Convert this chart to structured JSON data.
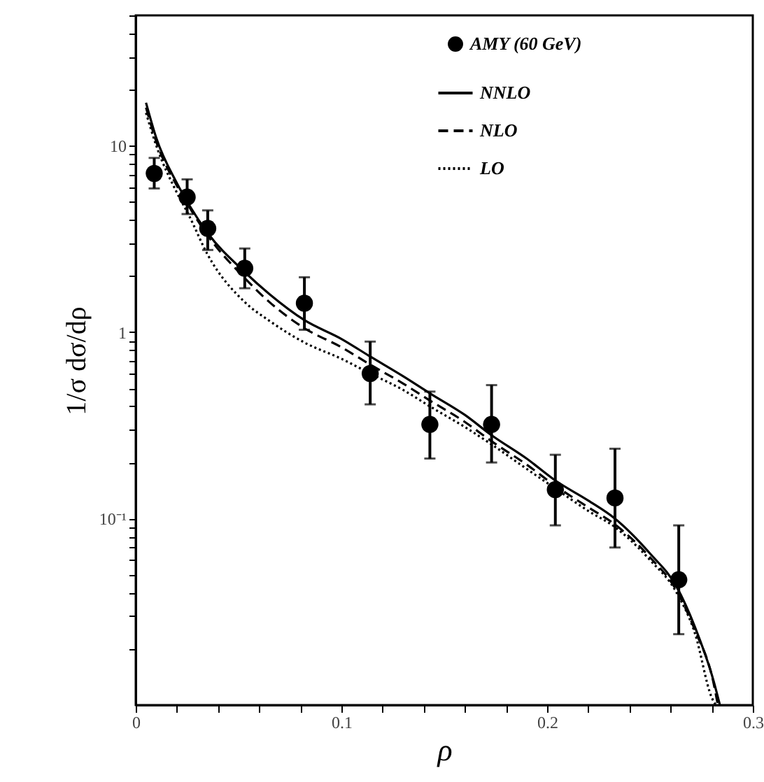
{
  "chart_data": {
    "type": "scatter",
    "xlabel": "ρ",
    "ylabel": "1/σ dσ/dρ",
    "log": "y",
    "grid": false,
    "legend": "top right",
    "xlim": [
      0,
      0.3
    ],
    "ylim": [
      0.01,
      50
    ],
    "xticks": [
      0,
      {
        "value": 0.02,
        "label": null
      },
      {
        "value": 0.04,
        "label": null
      },
      {
        "value": 0.06,
        "label": null
      },
      {
        "value": 0.08,
        "label": null
      },
      {
        "value": 0.1,
        "label": "0.1"
      },
      {
        "value": 0.12,
        "label": null
      },
      {
        "value": 0.14,
        "label": null
      },
      {
        "value": 0.16,
        "label": null
      },
      {
        "value": 0.18,
        "label": null
      },
      {
        "value": 0.2,
        "label": "0.2"
      },
      {
        "value": 0.22,
        "label": null
      },
      {
        "value": 0.24,
        "label": null
      },
      {
        "value": 0.26,
        "label": null
      },
      {
        "value": 0.28,
        "label": null
      },
      {
        "value": 0.3,
        "label": "0.3"
      }
    ],
    "yticks": [
      {
        "value": 0.02,
        "label": null
      },
      {
        "value": 0.03,
        "label": null
      },
      {
        "value": 0.04,
        "label": null
      },
      {
        "value": 0.05,
        "label": null
      },
      {
        "value": 0.06,
        "label": null
      },
      {
        "value": 0.07,
        "label": null
      },
      {
        "value": 0.08,
        "label": null
      },
      {
        "value": 0.09,
        "label": null
      },
      {
        "value": 0.1,
        "label": "10⁻¹"
      },
      {
        "value": 0.2,
        "label": null
      },
      {
        "value": 0.3,
        "label": null
      },
      {
        "value": 0.4,
        "label": null
      },
      {
        "value": 0.5,
        "label": null
      },
      {
        "value": 0.6,
        "label": null
      },
      {
        "value": 0.7,
        "label": null
      },
      {
        "value": 0.8,
        "label": null
      },
      {
        "value": 0.9,
        "label": null
      },
      1,
      {
        "value": 2,
        "label": null
      },
      {
        "value": 3,
        "label": null
      },
      {
        "value": 4,
        "label": null
      },
      {
        "value": 5,
        "label": null
      },
      {
        "value": 6,
        "label": null
      },
      {
        "value": 7,
        "label": null
      },
      {
        "value": 8,
        "label": null
      },
      {
        "value": 9,
        "label": null
      },
      10,
      {
        "value": 20,
        "label": null
      },
      {
        "value": 30,
        "label": null
      },
      {
        "value": 40,
        "label": null
      },
      {
        "value": 50,
        "label": null
      }
    ],
    "series": [
      {
        "name": "AMY (60 GeV)",
        "marker": "circle",
        "color": "#000000",
        "x": [
          0.009,
          0.025,
          0.035,
          0.053,
          0.082,
          0.114,
          0.143,
          0.173,
          0.204,
          0.233,
          0.264
        ],
        "values": [
          7.1,
          5.3,
          3.6,
          2.2,
          1.43,
          0.6,
          0.32,
          0.32,
          0.143,
          0.129,
          0.047
        ],
        "errors": [
          [
            5.9,
            8.6
          ],
          [
            4.3,
            6.6
          ],
          [
            2.76,
            4.5
          ],
          [
            1.72,
            2.81
          ],
          [
            1.03,
            1.97
          ],
          [
            0.41,
            0.89
          ],
          [
            0.21,
            0.48
          ],
          [
            0.2,
            0.52
          ],
          [
            0.092,
            0.22
          ],
          [
            0.07,
            0.237
          ],
          [
            0.024,
            0.092
          ]
        ]
      },
      {
        "name": "NNLO",
        "type": "line",
        "line_style": "solid",
        "color": "#000000",
        "x": [
          0.005,
          0.01,
          0.02,
          0.026,
          0.035,
          0.053,
          0.065,
          0.082,
          0.1,
          0.114,
          0.13,
          0.143,
          0.16,
          0.173,
          0.19,
          0.204,
          0.22,
          0.233,
          0.25,
          0.263,
          0.272,
          0.281,
          0.284
        ],
        "values": [
          17,
          11,
          6.3,
          4.8,
          3.4,
          2.1,
          1.6,
          1.16,
          0.92,
          0.74,
          0.58,
          0.47,
          0.36,
          0.28,
          0.21,
          0.16,
          0.125,
          0.1,
          0.065,
          0.043,
          0.026,
          0.0134,
          0.01
        ]
      },
      {
        "name": "NLO",
        "type": "line",
        "line_style": "dashed",
        "color": "#000000",
        "x": [
          0.005,
          0.01,
          0.02,
          0.026,
          0.035,
          0.053,
          0.065,
          0.082,
          0.1,
          0.114,
          0.13,
          0.143,
          0.16,
          0.173,
          0.19,
          0.204,
          0.22,
          0.233,
          0.25,
          0.263,
          0.272,
          0.281,
          0.283
        ],
        "values": [
          16,
          10.5,
          6.1,
          4.7,
          3.3,
          1.95,
          1.45,
          1.05,
          0.83,
          0.67,
          0.53,
          0.43,
          0.33,
          0.26,
          0.195,
          0.15,
          0.115,
          0.093,
          0.062,
          0.041,
          0.025,
          0.013,
          0.01
        ]
      },
      {
        "name": "LO",
        "type": "line",
        "line_style": "dotted",
        "color": "#000000",
        "x": [
          0.005,
          0.01,
          0.02,
          0.026,
          0.035,
          0.053,
          0.065,
          0.082,
          0.1,
          0.114,
          0.13,
          0.143,
          0.16,
          0.173,
          0.19,
          0.204,
          0.22,
          0.233,
          0.25,
          0.263,
          0.272,
          0.28,
          0.282
        ],
        "values": [
          15,
          10,
          5.6,
          4.2,
          2.6,
          1.45,
          1.15,
          0.88,
          0.72,
          0.6,
          0.49,
          0.4,
          0.31,
          0.25,
          0.185,
          0.145,
          0.11,
          0.09,
          0.06,
          0.04,
          0.024,
          0.011,
          0.01
        ]
      }
    ]
  }
}
